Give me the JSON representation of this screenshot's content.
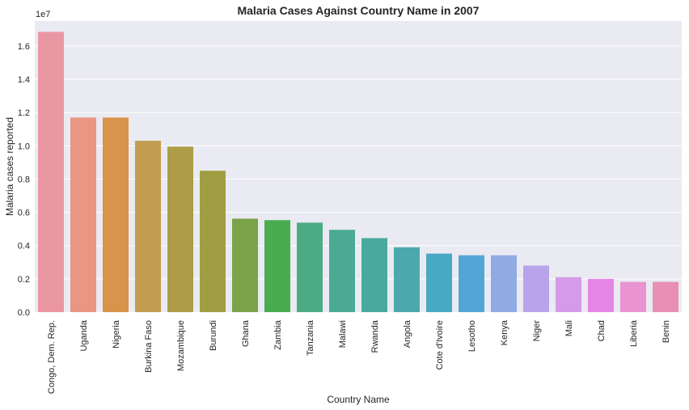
{
  "chart_data": {
    "type": "bar",
    "title": "Malaria Cases Against Country Name in 2007",
    "xlabel": "Country Name",
    "ylabel": "Malaria cases reported",
    "offset_label": "1e7",
    "ylim": [
      0,
      1.75
    ],
    "yticks": [
      {
        "value": 0.0,
        "label": "0.0"
      },
      {
        "value": 0.2,
        "label": "0.2"
      },
      {
        "value": 0.4,
        "label": "0.4"
      },
      {
        "value": 0.6,
        "label": "0.6"
      },
      {
        "value": 0.8,
        "label": "0.8"
      },
      {
        "value": 1.0,
        "label": "1.0"
      },
      {
        "value": 1.2,
        "label": "1.2"
      },
      {
        "value": 1.4,
        "label": "1.4"
      },
      {
        "value": 1.6,
        "label": "1.6"
      }
    ],
    "categories": [
      "Congo, Dem. Rep.",
      "Uganda",
      "Nigeria",
      "Burkina Faso",
      "Mozambique",
      "Burundi",
      "Ghana",
      "Zambia",
      "Tanzania",
      "Malawi",
      "Rwanda",
      "Angola",
      "Cote d'Ivoire",
      "Lesotho",
      "Kenya",
      "Niger",
      "Mali",
      "Chad",
      "Liberia",
      "Benin"
    ],
    "values": [
      1.685,
      1.17,
      1.17,
      1.03,
      0.995,
      0.85,
      0.562,
      0.553,
      0.538,
      0.495,
      0.445,
      0.39,
      0.352,
      0.342,
      0.342,
      0.28,
      0.21,
      0.2,
      0.182,
      0.182
    ],
    "colors": [
      "#ea96a3",
      "#e99683",
      "#d8944b",
      "#c29d51",
      "#ac9d46",
      "#a09e42",
      "#7ba34a",
      "#4aac50",
      "#4bac84",
      "#4aaa93",
      "#4aa99e",
      "#4ba9ab",
      "#4aa9c2",
      "#52a6d6",
      "#90aae3",
      "#b9a4e9",
      "#d59be9",
      "#e685e6",
      "#e993d1",
      "#e88fb3"
    ]
  }
}
